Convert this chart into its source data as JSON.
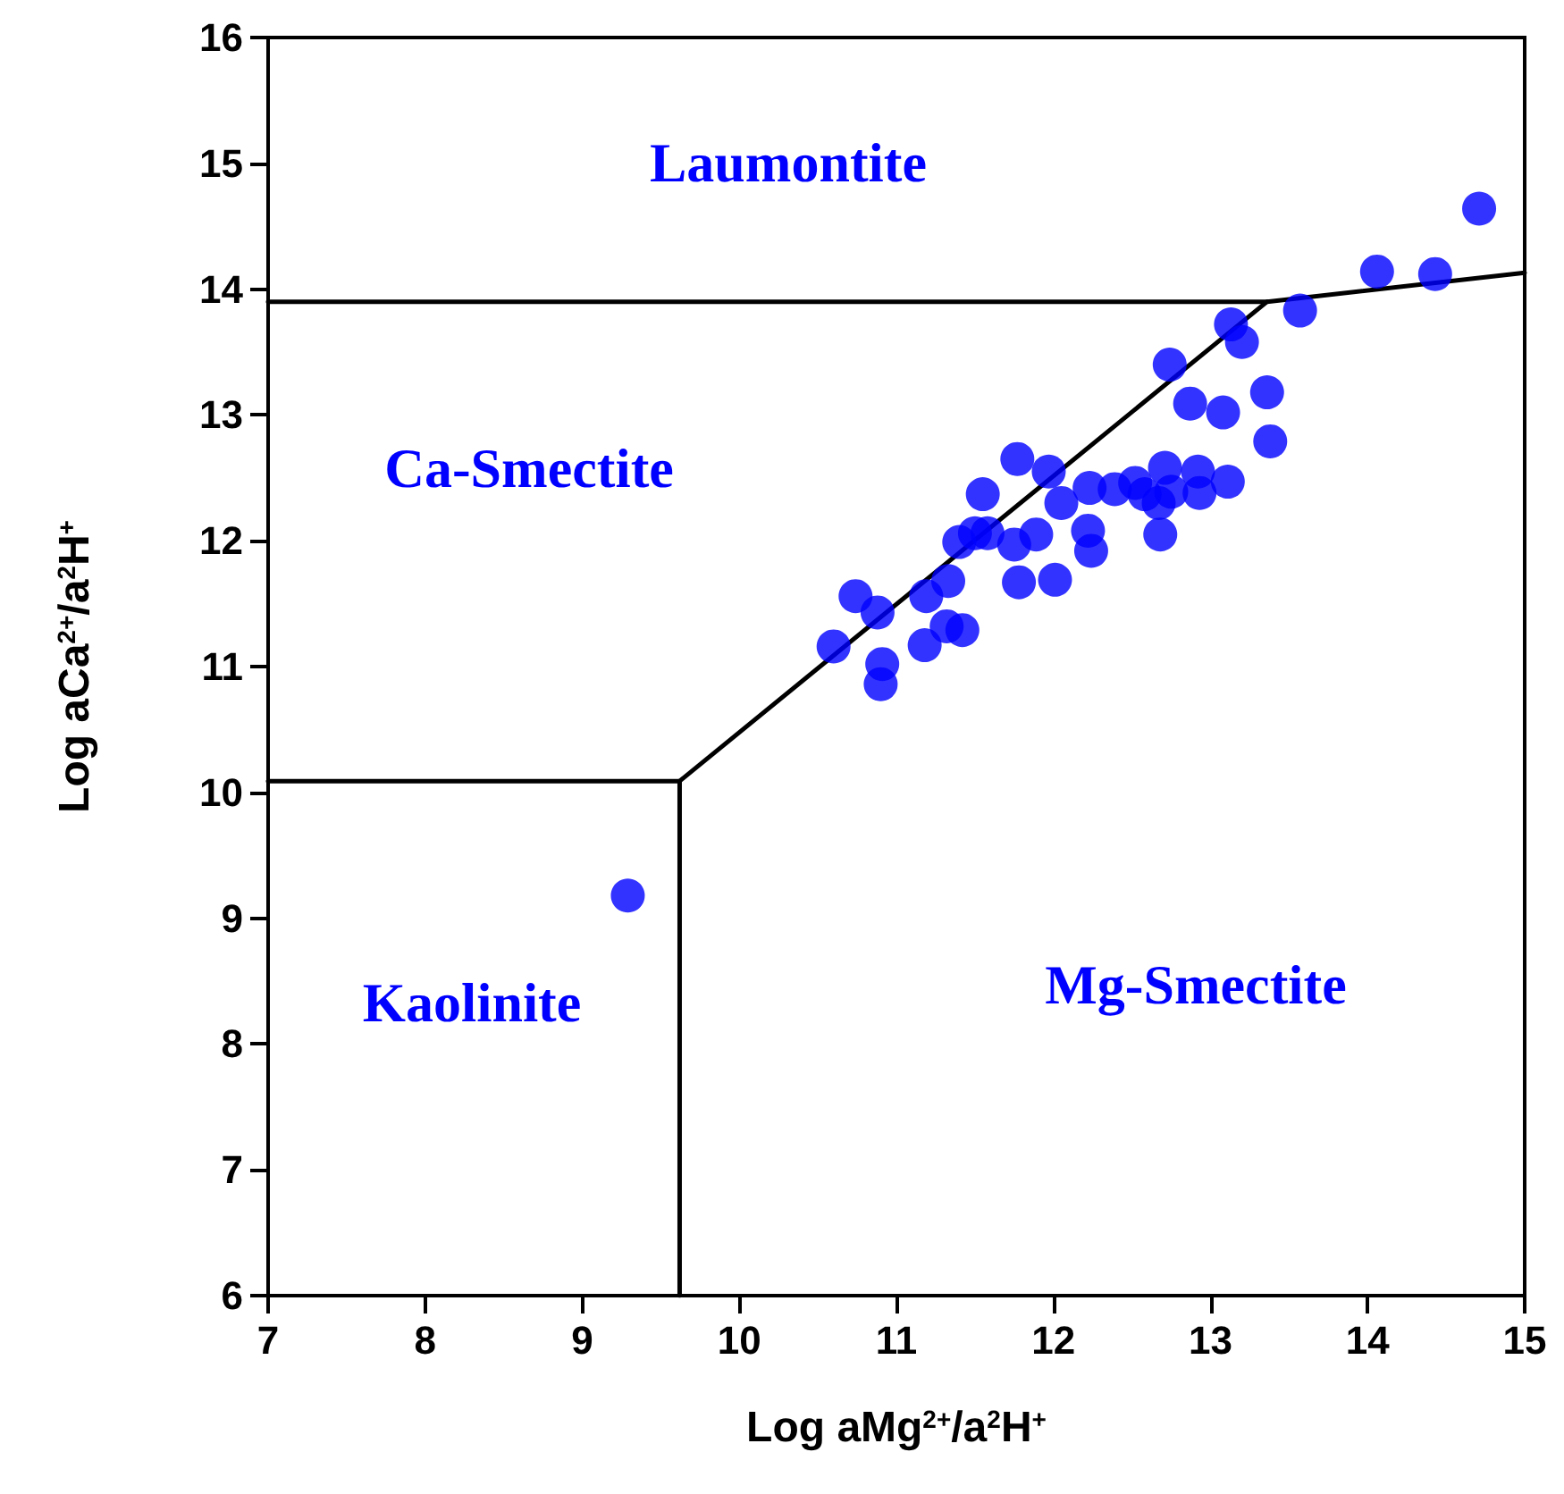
{
  "chart_data": {
    "type": "scatter",
    "xlabel": "Log aMg$^{2+}$/a$^{2}$H$^{+}$",
    "ylabel": "Log aCa$^{2+}$/a$^{2}$H$^{+}$",
    "xlim": [
      7,
      15
    ],
    "xticks": [
      7,
      8,
      9,
      10,
      11,
      12,
      13,
      14,
      15
    ],
    "ylim": [
      6,
      16
    ],
    "yticks": [
      6,
      7,
      8,
      9,
      10,
      11,
      12,
      13,
      14,
      15,
      16
    ],
    "grid": false,
    "marker": "circle",
    "series": [
      {
        "color": "#0000ff",
        "x": [
          9.29,
          10.6,
          10.74,
          10.88,
          10.91,
          10.9,
          11.18,
          11.32,
          11.42,
          11.19,
          11.33,
          11.4,
          11.5,
          11.58,
          11.55,
          11.77,
          11.97,
          11.78,
          12.01,
          11.75,
          11.89,
          12.05,
          12.22,
          12.24,
          12.23,
          12.39,
          12.52,
          12.58,
          12.67,
          12.71,
          12.75,
          12.68,
          12.92,
          12.93,
          13.11,
          12.87,
          13.08,
          13.36,
          13.38,
          12.74,
          13.13,
          13.2,
          13.57,
          14.06,
          14.43,
          14.71
        ],
        "values": [
          9.18,
          11.16,
          11.56,
          11.43,
          11.02,
          10.86,
          11.17,
          11.32,
          11.29,
          11.56,
          11.68,
          11.99,
          12.06,
          12.06,
          12.37,
          12.65,
          12.55,
          11.67,
          11.69,
          11.97,
          12.05,
          12.3,
          12.08,
          11.92,
          12.42,
          12.41,
          12.46,
          12.37,
          12.3,
          12.58,
          12.39,
          12.05,
          12.55,
          12.38,
          12.47,
          13.09,
          13.02,
          13.18,
          12.79,
          13.4,
          13.72,
          13.58,
          13.83,
          14.14,
          14.12,
          14.64
        ]
      },
      {
        "type": "line",
        "color": "#000000",
        "marker": "none",
        "line_style": "solid",
        "x": [
          7,
          13.36,
          15
        ],
        "values": [
          13.9,
          13.9,
          14.13
        ]
      },
      {
        "type": "line",
        "color": "#000000",
        "marker": "none",
        "line_style": "solid",
        "x": [
          9.62,
          13.36
        ],
        "values": [
          10.09,
          13.9
        ]
      },
      {
        "type": "line",
        "color": "#000000",
        "marker": "none",
        "line_style": "solid",
        "x": [
          7,
          9.62,
          9.62
        ],
        "values": [
          10.09,
          10.09,
          6
        ]
      }
    ],
    "annotations": [
      "Laumontite",
      "Ca-Smectite",
      "Kaolinite",
      "Mg-Smectite"
    ]
  }
}
